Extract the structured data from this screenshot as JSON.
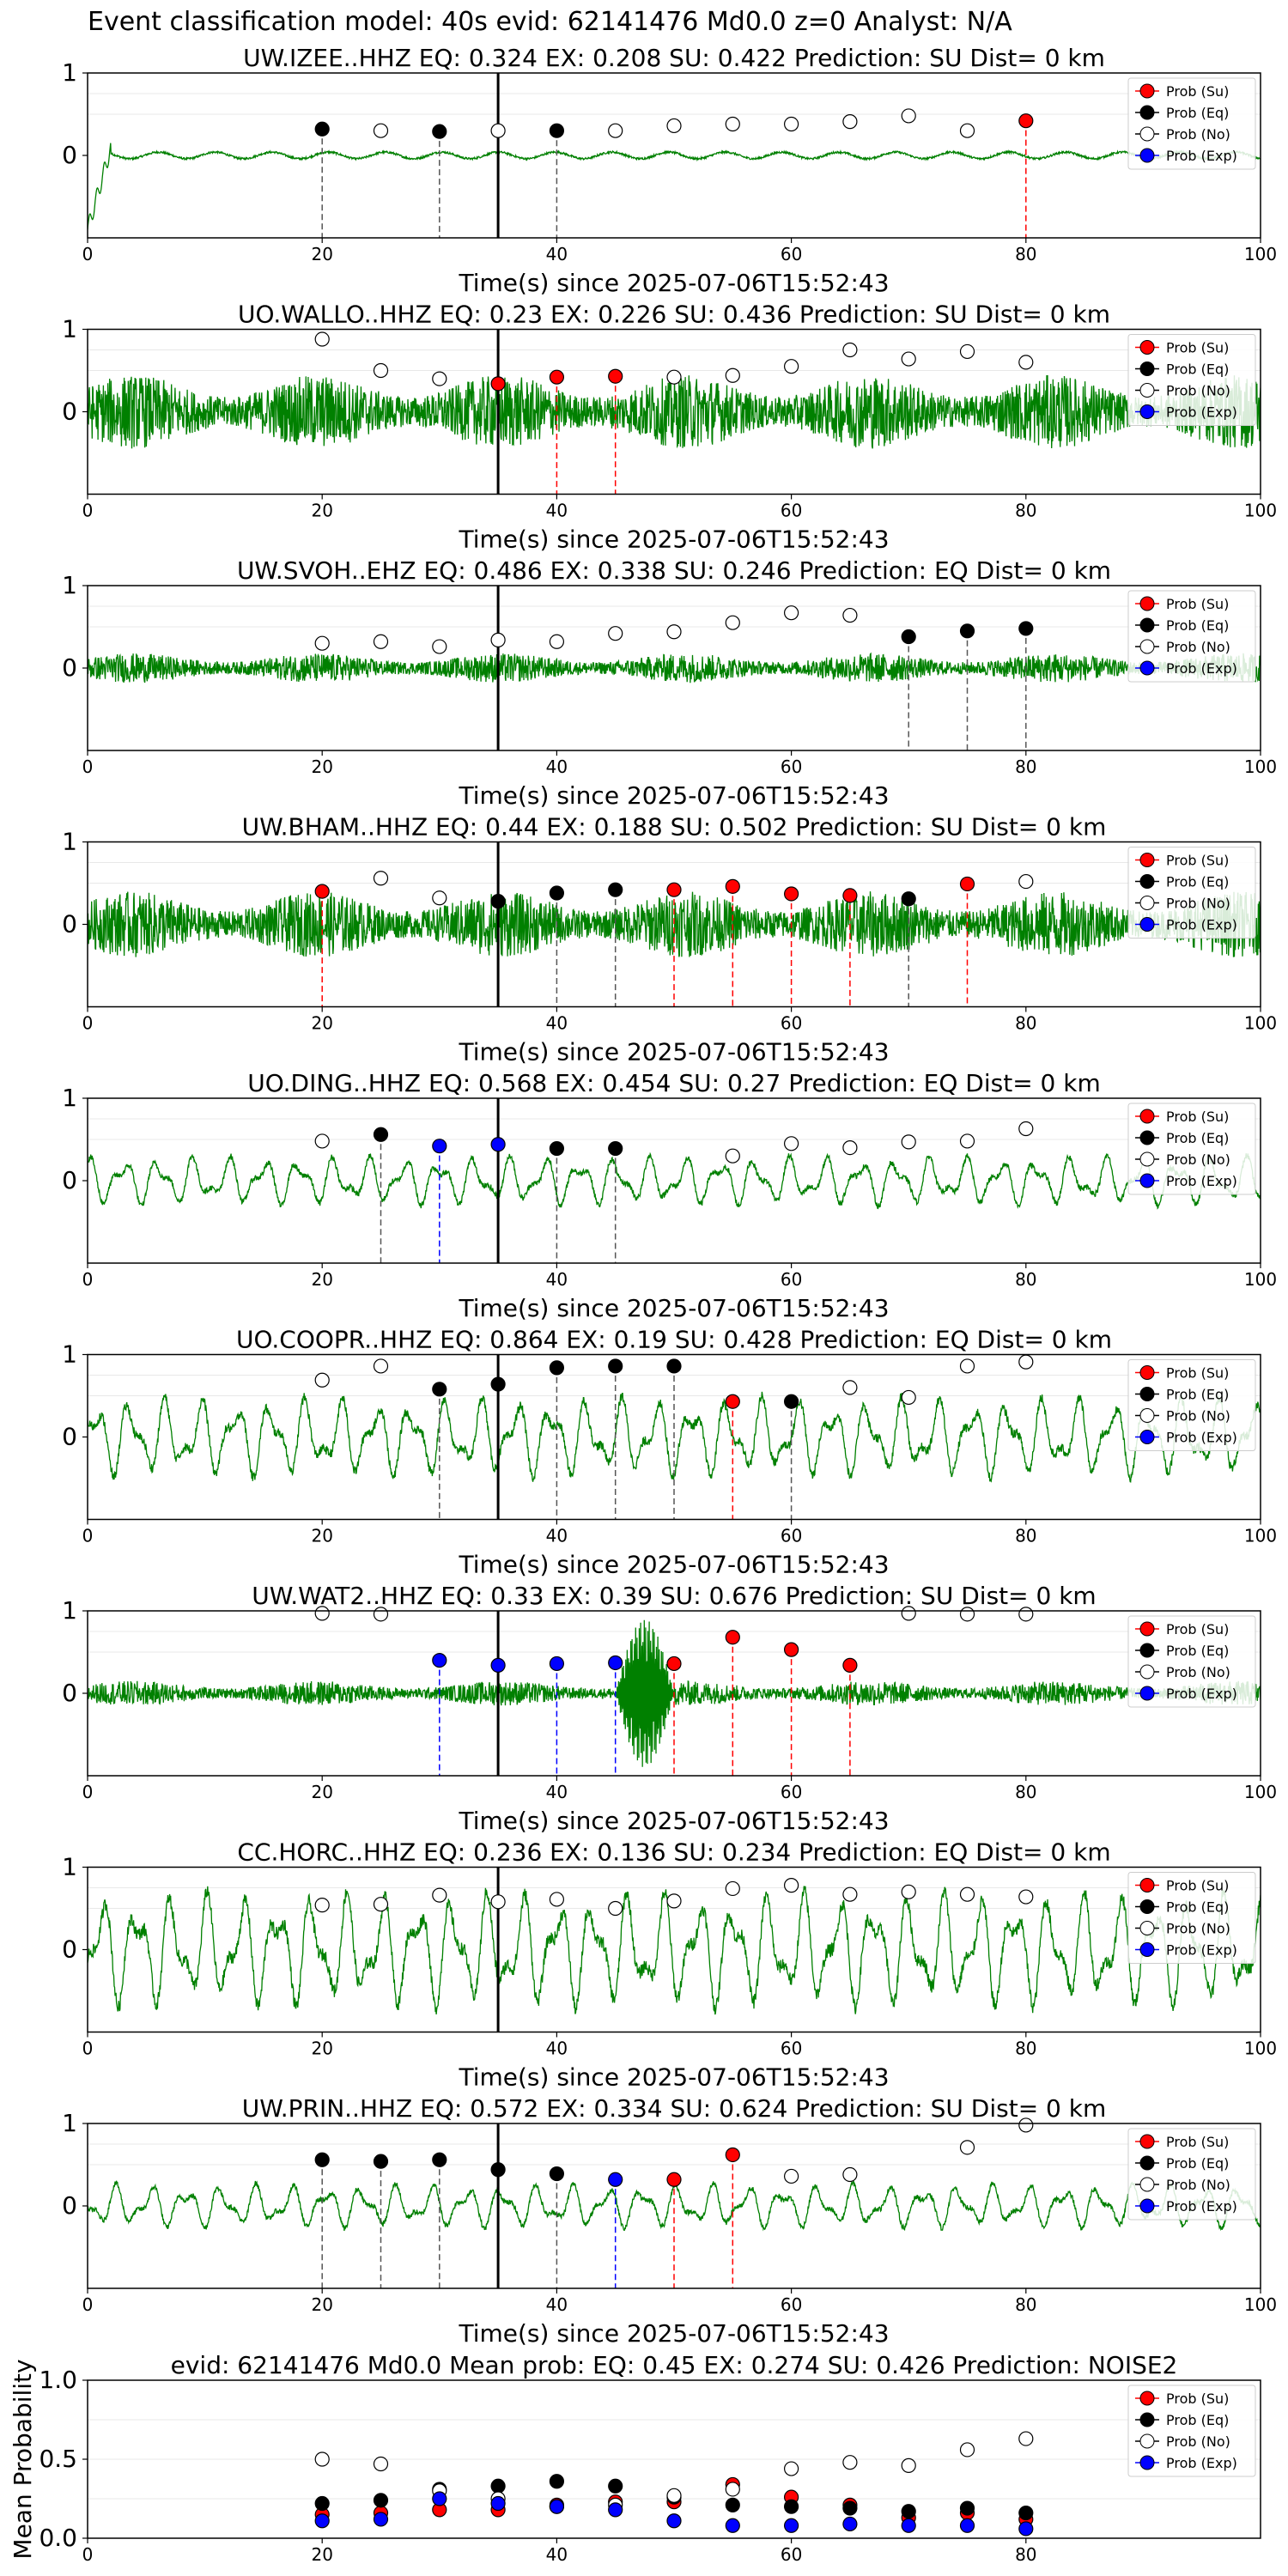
{
  "figure": {
    "suptitle": "Event classification model: 40s evid: 62141476 Md0.0 z=0 Analyst: N/A",
    "xlabel": "Time(s) since 2025-07-06T15:52:43",
    "legend": [
      "Prob (Su)",
      "Prob (Eq)",
      "Prob (No)",
      "Prob (Exp)"
    ],
    "colors": {
      "waveform": "#008000",
      "su": "#ff0000",
      "eq": "#000000",
      "no": "#ffffff",
      "exp": "#0000ff",
      "pick_line": "#000000"
    }
  },
  "chart_data": [
    {
      "type": "line",
      "title": "UW.IZEE..HHZ   EQ: 0.324  EX: 0.208  SU: 0.422   Prediction: SU    Dist= 0 km",
      "xlabel": "Time(s) since 2025-07-06T15:52:43",
      "xlim": [
        0,
        100
      ],
      "ylim": [
        -1,
        1
      ],
      "xticks": [
        0,
        20,
        40,
        60,
        80,
        100
      ],
      "yticks": [
        0,
        1
      ],
      "waveform": {
        "amplitude": 0.04,
        "style": "low",
        "onset_spike": true
      },
      "pick_time": 35,
      "points": [
        {
          "x": 20,
          "y": 0.32,
          "class": "eq",
          "vline": true
        },
        {
          "x": 25,
          "y": 0.3,
          "class": "no"
        },
        {
          "x": 30,
          "y": 0.29,
          "class": "eq",
          "vline": true
        },
        {
          "x": 35,
          "y": 0.3,
          "class": "no"
        },
        {
          "x": 40,
          "y": 0.3,
          "class": "eq",
          "vline": true
        },
        {
          "x": 45,
          "y": 0.3,
          "class": "no"
        },
        {
          "x": 50,
          "y": 0.36,
          "class": "no"
        },
        {
          "x": 55,
          "y": 0.38,
          "class": "no"
        },
        {
          "x": 60,
          "y": 0.38,
          "class": "no"
        },
        {
          "x": 65,
          "y": 0.41,
          "class": "no"
        },
        {
          "x": 70,
          "y": 0.48,
          "class": "no"
        },
        {
          "x": 75,
          "y": 0.3,
          "class": "no"
        },
        {
          "x": 80,
          "y": 0.42,
          "class": "su",
          "vline": true
        }
      ]
    },
    {
      "type": "line",
      "title": "UO.WALLO..HHZ   EQ: 0.23  EX: 0.226  SU: 0.436   Prediction: SU    Dist= 0 km",
      "xlabel": "Time(s) since 2025-07-06T15:52:43",
      "xlim": [
        0,
        100
      ],
      "ylim": [
        -1,
        1
      ],
      "xticks": [
        0,
        20,
        40,
        60,
        80,
        100
      ],
      "yticks": [
        0,
        1
      ],
      "waveform": {
        "amplitude": 0.45,
        "style": "noise"
      },
      "pick_time": 35,
      "points": [
        {
          "x": 20,
          "y": 0.88,
          "class": "no"
        },
        {
          "x": 25,
          "y": 0.5,
          "class": "no"
        },
        {
          "x": 30,
          "y": 0.4,
          "class": "no"
        },
        {
          "x": 35,
          "y": 0.34,
          "class": "su"
        },
        {
          "x": 40,
          "y": 0.42,
          "class": "su",
          "vline": true
        },
        {
          "x": 45,
          "y": 0.43,
          "class": "su",
          "vline": true
        },
        {
          "x": 50,
          "y": 0.42,
          "class": "no"
        },
        {
          "x": 55,
          "y": 0.44,
          "class": "no"
        },
        {
          "x": 60,
          "y": 0.55,
          "class": "no"
        },
        {
          "x": 65,
          "y": 0.75,
          "class": "no"
        },
        {
          "x": 70,
          "y": 0.64,
          "class": "no"
        },
        {
          "x": 75,
          "y": 0.73,
          "class": "no"
        },
        {
          "x": 80,
          "y": 0.6,
          "class": "no"
        }
      ]
    },
    {
      "type": "line",
      "title": "UW.SVOH..EHZ   EQ: 0.486  EX: 0.338  SU: 0.246   Prediction: EQ    Dist= 0 km",
      "xlabel": "Time(s) since 2025-07-06T15:52:43",
      "xlim": [
        0,
        100
      ],
      "ylim": [
        -1,
        1
      ],
      "xticks": [
        0,
        20,
        40,
        60,
        80,
        100
      ],
      "yticks": [
        0,
        1
      ],
      "waveform": {
        "amplitude": 0.18,
        "style": "noise"
      },
      "pick_time": 35,
      "points": [
        {
          "x": 20,
          "y": 0.3,
          "class": "no"
        },
        {
          "x": 25,
          "y": 0.32,
          "class": "no"
        },
        {
          "x": 30,
          "y": 0.26,
          "class": "no"
        },
        {
          "x": 35,
          "y": 0.34,
          "class": "no"
        },
        {
          "x": 40,
          "y": 0.32,
          "class": "no"
        },
        {
          "x": 45,
          "y": 0.42,
          "class": "no"
        },
        {
          "x": 50,
          "y": 0.44,
          "class": "no"
        },
        {
          "x": 55,
          "y": 0.55,
          "class": "no"
        },
        {
          "x": 60,
          "y": 0.67,
          "class": "no"
        },
        {
          "x": 65,
          "y": 0.64,
          "class": "no"
        },
        {
          "x": 70,
          "y": 0.38,
          "class": "eq",
          "vline": true
        },
        {
          "x": 75,
          "y": 0.45,
          "class": "eq",
          "vline": true
        },
        {
          "x": 80,
          "y": 0.48,
          "class": "eq",
          "vline": true
        }
      ]
    },
    {
      "type": "line",
      "title": "UW.BHAM..HHZ   EQ: 0.44  EX: 0.188  SU: 0.502   Prediction: SU    Dist= 0 km",
      "xlabel": "Time(s) since 2025-07-06T15:52:43",
      "xlim": [
        0,
        100
      ],
      "ylim": [
        -1,
        1
      ],
      "xticks": [
        0,
        20,
        40,
        60,
        80,
        100
      ],
      "yticks": [
        0,
        1
      ],
      "waveform": {
        "amplitude": 0.4,
        "style": "noise"
      },
      "pick_time": 35,
      "points": [
        {
          "x": 20,
          "y": 0.4,
          "class": "su",
          "vline": true
        },
        {
          "x": 25,
          "y": 0.56,
          "class": "no"
        },
        {
          "x": 30,
          "y": 0.32,
          "class": "no"
        },
        {
          "x": 35,
          "y": 0.28,
          "class": "eq"
        },
        {
          "x": 40,
          "y": 0.38,
          "class": "eq",
          "vline": true
        },
        {
          "x": 45,
          "y": 0.42,
          "class": "eq",
          "vline": true
        },
        {
          "x": 50,
          "y": 0.42,
          "class": "su",
          "vline": true
        },
        {
          "x": 55,
          "y": 0.46,
          "class": "su",
          "vline": true
        },
        {
          "x": 60,
          "y": 0.37,
          "class": "su",
          "vline": true
        },
        {
          "x": 65,
          "y": 0.35,
          "class": "su",
          "vline": true
        },
        {
          "x": 70,
          "y": 0.31,
          "class": "eq",
          "vline": true
        },
        {
          "x": 75,
          "y": 0.49,
          "class": "su",
          "vline": true
        },
        {
          "x": 80,
          "y": 0.52,
          "class": "no"
        }
      ]
    },
    {
      "type": "line",
      "title": "UO.DING..HHZ   EQ: 0.568  EX: 0.454  SU: 0.27   Prediction: EQ    Dist= 0 km",
      "xlabel": "Time(s) since 2025-07-06T15:52:43",
      "xlim": [
        0,
        100
      ],
      "ylim": [
        -1,
        1
      ],
      "xticks": [
        0,
        20,
        40,
        60,
        80,
        100
      ],
      "yticks": [
        0,
        1
      ],
      "waveform": {
        "amplitude": 0.28,
        "style": "wave"
      },
      "pick_time": 35,
      "points": [
        {
          "x": 20,
          "y": 0.48,
          "class": "no"
        },
        {
          "x": 25,
          "y": 0.56,
          "class": "eq",
          "vline": true
        },
        {
          "x": 30,
          "y": 0.42,
          "class": "exp",
          "vline": true
        },
        {
          "x": 35,
          "y": 0.44,
          "class": "exp"
        },
        {
          "x": 40,
          "y": 0.39,
          "class": "eq",
          "vline": true
        },
        {
          "x": 45,
          "y": 0.39,
          "class": "eq",
          "vline": true
        },
        {
          "x": 55,
          "y": 0.3,
          "class": "no"
        },
        {
          "x": 60,
          "y": 0.45,
          "class": "no"
        },
        {
          "x": 65,
          "y": 0.4,
          "class": "no"
        },
        {
          "x": 70,
          "y": 0.47,
          "class": "no"
        },
        {
          "x": 75,
          "y": 0.48,
          "class": "no"
        },
        {
          "x": 80,
          "y": 0.63,
          "class": "no"
        }
      ]
    },
    {
      "type": "line",
      "title": "UO.COOPR..HHZ   EQ: 0.864  EX: 0.19  SU: 0.428   Prediction: EQ    Dist= 0 km",
      "xlabel": "Time(s) since 2025-07-06T15:52:43",
      "xlim": [
        0,
        100
      ],
      "ylim": [
        -1,
        1
      ],
      "xticks": [
        0,
        20,
        40,
        60,
        80,
        100
      ],
      "yticks": [
        0,
        1
      ],
      "waveform": {
        "amplitude": 0.45,
        "style": "wave"
      },
      "pick_time": 35,
      "points": [
        {
          "x": 20,
          "y": 0.69,
          "class": "no"
        },
        {
          "x": 25,
          "y": 0.86,
          "class": "no"
        },
        {
          "x": 30,
          "y": 0.58,
          "class": "eq",
          "vline": true
        },
        {
          "x": 35,
          "y": 0.64,
          "class": "eq"
        },
        {
          "x": 40,
          "y": 0.84,
          "class": "eq",
          "vline": true
        },
        {
          "x": 45,
          "y": 0.86,
          "class": "eq",
          "vline": true
        },
        {
          "x": 50,
          "y": 0.86,
          "class": "eq",
          "vline": true
        },
        {
          "x": 55,
          "y": 0.43,
          "class": "su",
          "vline": true
        },
        {
          "x": 60,
          "y": 0.43,
          "class": "eq",
          "vline": true
        },
        {
          "x": 65,
          "y": 0.6,
          "class": "no"
        },
        {
          "x": 70,
          "y": 0.48,
          "class": "no"
        },
        {
          "x": 75,
          "y": 0.86,
          "class": "no"
        },
        {
          "x": 80,
          "y": 0.91,
          "class": "no"
        }
      ]
    },
    {
      "type": "line",
      "title": "UW.WAT2..HHZ   EQ: 0.33  EX: 0.39  SU: 0.676   Prediction: SU    Dist= 0 km",
      "xlabel": "Time(s) since 2025-07-06T15:52:43",
      "xlim": [
        0,
        100
      ],
      "ylim": [
        -1,
        1
      ],
      "xticks": [
        0,
        20,
        40,
        60,
        80,
        100
      ],
      "yticks": [
        0,
        1
      ],
      "waveform": {
        "amplitude": 0.15,
        "style": "burst",
        "burst_start": 45,
        "burst_end": 50,
        "burst_amplitude": 0.9
      },
      "pick_time": 35,
      "points": [
        {
          "x": 20,
          "y": 0.97,
          "class": "no"
        },
        {
          "x": 25,
          "y": 0.96,
          "class": "no"
        },
        {
          "x": 30,
          "y": 0.4,
          "class": "exp",
          "vline": true
        },
        {
          "x": 35,
          "y": 0.34,
          "class": "exp"
        },
        {
          "x": 40,
          "y": 0.36,
          "class": "exp",
          "vline": true
        },
        {
          "x": 45,
          "y": 0.37,
          "class": "exp",
          "vline": true
        },
        {
          "x": 50,
          "y": 0.36,
          "class": "su",
          "vline": true
        },
        {
          "x": 55,
          "y": 0.68,
          "class": "su",
          "vline": true
        },
        {
          "x": 60,
          "y": 0.53,
          "class": "su",
          "vline": true
        },
        {
          "x": 65,
          "y": 0.34,
          "class": "su",
          "vline": true
        },
        {
          "x": 70,
          "y": 0.97,
          "class": "no"
        },
        {
          "x": 75,
          "y": 0.96,
          "class": "no"
        },
        {
          "x": 80,
          "y": 0.96,
          "class": "no"
        }
      ]
    },
    {
      "type": "line",
      "title": "CC.HORC..HHZ   EQ: 0.236  EX: 0.136  SU: 0.234   Prediction: EQ    Dist= 0 km",
      "xlabel": "Time(s) since 2025-07-06T15:52:43",
      "xlim": [
        0,
        100
      ],
      "ylim": [
        -1,
        1
      ],
      "xticks": [
        0,
        20,
        40,
        60,
        80,
        100
      ],
      "yticks": [
        0,
        1
      ],
      "waveform": {
        "amplitude": 0.65,
        "style": "wave"
      },
      "pick_time": 35,
      "points": [
        {
          "x": 20,
          "y": 0.54,
          "class": "no"
        },
        {
          "x": 25,
          "y": 0.55,
          "class": "no"
        },
        {
          "x": 30,
          "y": 0.66,
          "class": "no"
        },
        {
          "x": 35,
          "y": 0.58,
          "class": "no"
        },
        {
          "x": 40,
          "y": 0.61,
          "class": "no"
        },
        {
          "x": 45,
          "y": 0.5,
          "class": "no"
        },
        {
          "x": 50,
          "y": 0.59,
          "class": "no"
        },
        {
          "x": 55,
          "y": 0.74,
          "class": "no"
        },
        {
          "x": 60,
          "y": 0.78,
          "class": "no"
        },
        {
          "x": 65,
          "y": 0.67,
          "class": "no"
        },
        {
          "x": 70,
          "y": 0.7,
          "class": "no"
        },
        {
          "x": 75,
          "y": 0.67,
          "class": "no"
        },
        {
          "x": 80,
          "y": 0.64,
          "class": "no"
        }
      ]
    },
    {
      "type": "line",
      "title": "UW.PRIN..HHZ   EQ: 0.572  EX: 0.334  SU: 0.624   Prediction: SU    Dist= 0 km",
      "xlabel": "Time(s) since 2025-07-06T15:52:43",
      "xlim": [
        0,
        100
      ],
      "ylim": [
        -1,
        1
      ],
      "xticks": [
        0,
        20,
        40,
        60,
        80,
        100
      ],
      "yticks": [
        0,
        1
      ],
      "waveform": {
        "amplitude": 0.25,
        "style": "wave"
      },
      "pick_time": 35,
      "points": [
        {
          "x": 20,
          "y": 0.56,
          "class": "eq",
          "vline": true
        },
        {
          "x": 25,
          "y": 0.54,
          "class": "eq",
          "vline": true
        },
        {
          "x": 30,
          "y": 0.56,
          "class": "eq",
          "vline": true
        },
        {
          "x": 35,
          "y": 0.44,
          "class": "eq"
        },
        {
          "x": 40,
          "y": 0.39,
          "class": "eq",
          "vline": true
        },
        {
          "x": 45,
          "y": 0.32,
          "class": "exp",
          "vline": true
        },
        {
          "x": 50,
          "y": 0.32,
          "class": "su",
          "vline": true
        },
        {
          "x": 55,
          "y": 0.62,
          "class": "su",
          "vline": true
        },
        {
          "x": 60,
          "y": 0.36,
          "class": "no"
        },
        {
          "x": 65,
          "y": 0.38,
          "class": "no"
        },
        {
          "x": 75,
          "y": 0.71,
          "class": "no"
        },
        {
          "x": 80,
          "y": 0.98,
          "class": "no"
        }
      ]
    },
    {
      "type": "scatter",
      "title": "evid: 62141476  Md0.0   Mean prob:   EQ: 0.45  EX: 0.274  SU: 0.426   Prediction: NOISE2",
      "ylabel": "Mean Probability",
      "xlim": [
        0,
        100
      ],
      "ylim": [
        0,
        1
      ],
      "xticks": [
        0,
        20,
        40,
        60,
        80
      ],
      "yticks": [
        0.0,
        0.5,
        1.0
      ],
      "x": [
        20,
        25,
        30,
        35,
        40,
        45,
        50,
        55,
        60,
        65,
        70,
        75,
        80
      ],
      "series": [
        {
          "name": "Prob (Su)",
          "class": "su",
          "values": [
            0.15,
            0.16,
            0.18,
            0.18,
            0.21,
            0.23,
            0.23,
            0.34,
            0.26,
            0.21,
            0.13,
            0.16,
            0.12
          ]
        },
        {
          "name": "Prob (Eq)",
          "class": "eq",
          "values": [
            0.22,
            0.24,
            0.31,
            0.33,
            0.36,
            0.33,
            0.26,
            0.21,
            0.2,
            0.19,
            0.17,
            0.19,
            0.16
          ]
        },
        {
          "name": "Prob (No)",
          "class": "no",
          "values": [
            0.5,
            0.47,
            0.3,
            0.25,
            0.2,
            0.21,
            0.27,
            0.31,
            0.44,
            0.48,
            0.46,
            0.56,
            0.63
          ]
        },
        {
          "name": "Prob (Exp)",
          "class": "exp",
          "values": [
            0.11,
            0.12,
            0.25,
            0.22,
            0.2,
            0.18,
            0.11,
            0.08,
            0.08,
            0.09,
            0.08,
            0.08,
            0.06
          ]
        }
      ]
    }
  ]
}
